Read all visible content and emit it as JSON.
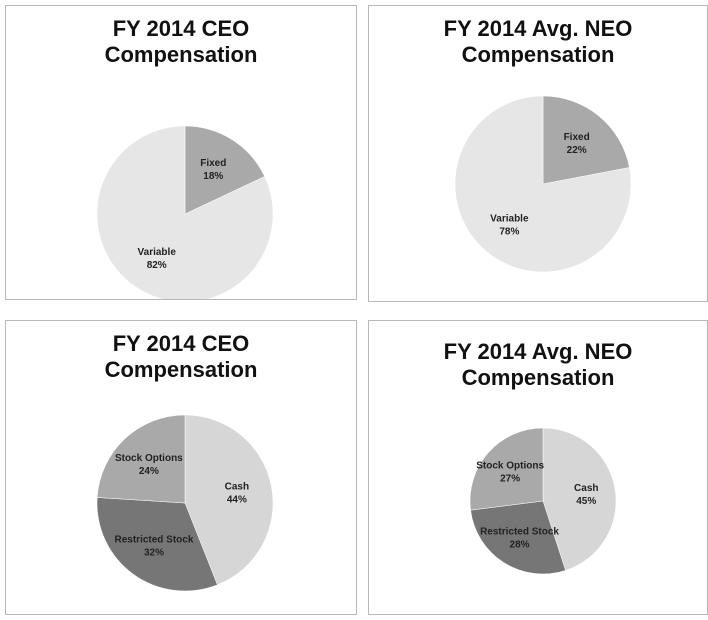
{
  "chart_data": [
    {
      "type": "pie",
      "title": "FY 2014 CEO Compensation",
      "categories": [
        "Fixed",
        "Variable"
      ],
      "values": [
        18,
        82
      ],
      "value_labels": [
        "18%",
        "82%"
      ],
      "colors": [
        "#a9a9a9",
        "#e6e6e6"
      ]
    },
    {
      "type": "pie",
      "title": "FY 2014 Avg. NEO Compensation",
      "categories": [
        "Fixed",
        "Variable"
      ],
      "values": [
        22,
        78
      ],
      "value_labels": [
        "22%",
        "78%"
      ],
      "colors": [
        "#a9a9a9",
        "#e6e6e6"
      ]
    },
    {
      "type": "pie",
      "title": "FY 2014 CEO Compensation",
      "categories": [
        "Cash",
        "Restricted Stock",
        "Stock Options"
      ],
      "values": [
        44,
        32,
        24
      ],
      "value_labels": [
        "44%",
        "32%",
        "24%"
      ],
      "colors": [
        "#d6d6d6",
        "#767676",
        "#a9a9a9"
      ]
    },
    {
      "type": "pie",
      "title": "FY 2014 Avg. NEO Compensation",
      "categories": [
        "Cash",
        "Restricted Stock",
        "Stock Options"
      ],
      "values": [
        45,
        28,
        27
      ],
      "value_labels": [
        "45%",
        "28%",
        "27%"
      ],
      "colors": [
        "#d6d6d6",
        "#767676",
        "#a9a9a9"
      ]
    }
  ]
}
